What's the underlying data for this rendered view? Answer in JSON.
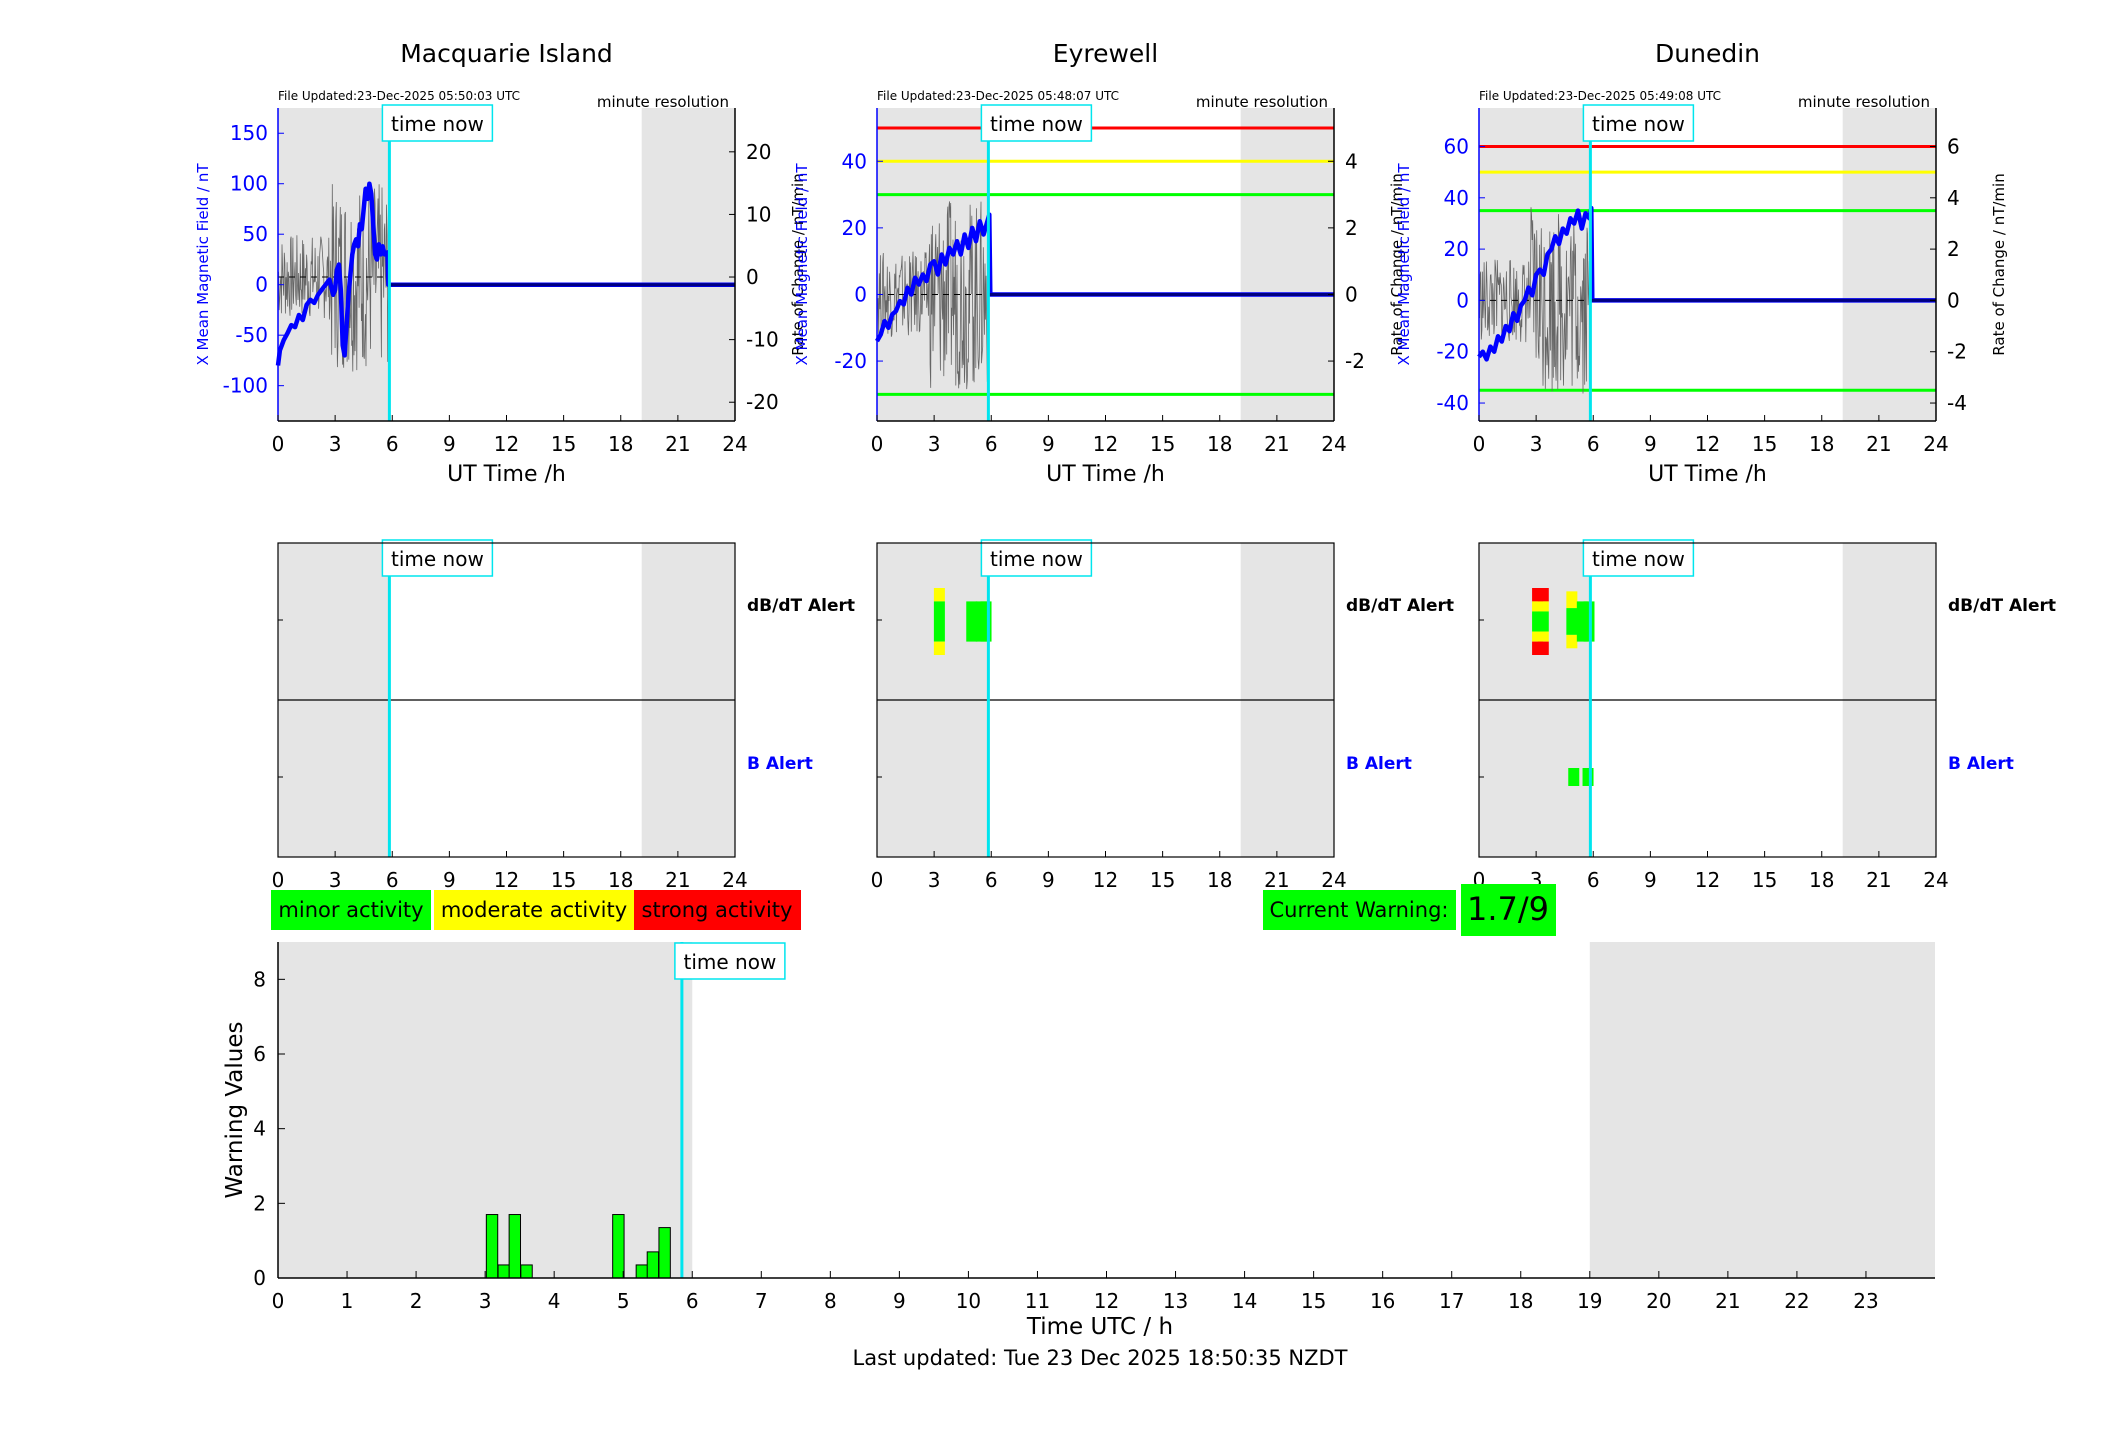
{
  "stations": [
    {
      "name": "Macquarie Island",
      "file_updated": "File Updated:23-Dec-2025 05:50:03 UTC",
      "resolution": "minute resolution",
      "ylim": [
        -135,
        175
      ],
      "yticks": [
        -100,
        -50,
        0,
        50,
        100,
        150
      ],
      "rlim": [
        -23,
        27
      ],
      "rticks": [
        -20,
        -10,
        0,
        10,
        20
      ],
      "thresholds": [],
      "field_trace": [
        [
          0,
          -80
        ],
        [
          0.1,
          -65
        ],
        [
          0.2,
          -60
        ],
        [
          0.3,
          -55
        ],
        [
          0.5,
          -48
        ],
        [
          0.7,
          -40
        ],
        [
          0.9,
          -42
        ],
        [
          1.1,
          -30
        ],
        [
          1.3,
          -35
        ],
        [
          1.5,
          -20
        ],
        [
          1.7,
          -15
        ],
        [
          1.9,
          -18
        ],
        [
          2.1,
          -10
        ],
        [
          2.3,
          -5
        ],
        [
          2.5,
          0
        ],
        [
          2.7,
          5
        ],
        [
          2.9,
          -10
        ],
        [
          3.0,
          -5
        ],
        [
          3.1,
          15
        ],
        [
          3.2,
          20
        ],
        [
          3.3,
          -5
        ],
        [
          3.4,
          -60
        ],
        [
          3.5,
          -70
        ],
        [
          3.6,
          -40
        ],
        [
          3.7,
          -10
        ],
        [
          3.8,
          10
        ],
        [
          3.9,
          30
        ],
        [
          4.0,
          40
        ],
        [
          4.1,
          45
        ],
        [
          4.2,
          38
        ],
        [
          4.3,
          60
        ],
        [
          4.4,
          55
        ],
        [
          4.5,
          75
        ],
        [
          4.6,
          95
        ],
        [
          4.7,
          85
        ],
        [
          4.8,
          100
        ],
        [
          4.9,
          90
        ],
        [
          5.0,
          60
        ],
        [
          5.1,
          30
        ],
        [
          5.2,
          25
        ],
        [
          5.3,
          40
        ],
        [
          5.4,
          30
        ],
        [
          5.5,
          38
        ],
        [
          5.6,
          30
        ],
        [
          5.75,
          32
        ],
        [
          5.8,
          0
        ],
        [
          24,
          0
        ]
      ],
      "dbdt_alerts": [],
      "b_alerts": []
    },
    {
      "name": "Eyrewell",
      "file_updated": "File Updated:23-Dec-2025 05:48:07 UTC",
      "resolution": "minute resolution",
      "ylim": [
        -38,
        56
      ],
      "yticks": [
        -20,
        0,
        20,
        40
      ],
      "rlim": [
        -3.8,
        5.6
      ],
      "rticks": [
        -2,
        0,
        2,
        4
      ],
      "thresholds": [
        {
          "value": 50,
          "color": "#ff0000"
        },
        {
          "value": 40,
          "color": "#ffff00"
        },
        {
          "value": 30,
          "color": "#00ff00"
        },
        {
          "value": -30,
          "color": "#00ff00"
        }
      ],
      "field_trace": [
        [
          0,
          -14
        ],
        [
          0.2,
          -12
        ],
        [
          0.4,
          -8
        ],
        [
          0.6,
          -10
        ],
        [
          0.8,
          -6
        ],
        [
          1.0,
          -5
        ],
        [
          1.2,
          -2
        ],
        [
          1.4,
          -3
        ],
        [
          1.6,
          2
        ],
        [
          1.8,
          0
        ],
        [
          2.0,
          5
        ],
        [
          2.2,
          3
        ],
        [
          2.4,
          6
        ],
        [
          2.6,
          4
        ],
        [
          2.8,
          9
        ],
        [
          3.0,
          10
        ],
        [
          3.2,
          6
        ],
        [
          3.4,
          12
        ],
        [
          3.6,
          9
        ],
        [
          3.8,
          14
        ],
        [
          4.0,
          12
        ],
        [
          4.2,
          16
        ],
        [
          4.4,
          12
        ],
        [
          4.6,
          18
        ],
        [
          4.8,
          14
        ],
        [
          5.0,
          20
        ],
        [
          5.2,
          16
        ],
        [
          5.4,
          22
        ],
        [
          5.6,
          18
        ],
        [
          5.8,
          22
        ],
        [
          5.9,
          24
        ],
        [
          5.95,
          0
        ],
        [
          24,
          0
        ]
      ],
      "dbdt_alerts": [
        {
          "t": 3.25,
          "segs": [
            [
              "yellow",
              0,
              0.2
            ],
            [
              "green",
              0.2,
              0.8
            ],
            [
              "yellow",
              0.8,
              1.0
            ]
          ]
        },
        {
          "t": 4.95,
          "segs": [
            [
              "green",
              0.2,
              0.8
            ]
          ]
        },
        {
          "t": 5.45,
          "segs": [
            [
              "green",
              0.2,
              0.8
            ]
          ]
        },
        {
          "t": 5.7,
          "segs": [
            [
              "green",
              0.2,
              0.8
            ]
          ]
        }
      ],
      "b_alerts": []
    },
    {
      "name": "Dunedin",
      "file_updated": "File Updated:23-Dec-2025 05:49:08 UTC",
      "resolution": "minute resolution",
      "ylim": [
        -47,
        75
      ],
      "yticks": [
        -40,
        -20,
        0,
        20,
        40,
        60
      ],
      "rlim": [
        -4.7,
        7.5
      ],
      "rticks": [
        -4,
        -2,
        0,
        2,
        4,
        6
      ],
      "thresholds": [
        {
          "value": 60,
          "color": "#ff0000"
        },
        {
          "value": 50,
          "color": "#ffff00"
        },
        {
          "value": 35,
          "color": "#00ff00"
        },
        {
          "value": -35,
          "color": "#00ff00"
        }
      ],
      "field_trace": [
        [
          0,
          -22
        ],
        [
          0.2,
          -20
        ],
        [
          0.4,
          -23
        ],
        [
          0.6,
          -18
        ],
        [
          0.8,
          -20
        ],
        [
          1.0,
          -14
        ],
        [
          1.2,
          -16
        ],
        [
          1.4,
          -10
        ],
        [
          1.6,
          -12
        ],
        [
          1.8,
          -5
        ],
        [
          2.0,
          -8
        ],
        [
          2.2,
          -2
        ],
        [
          2.4,
          0
        ],
        [
          2.6,
          5
        ],
        [
          2.8,
          2
        ],
        [
          3.0,
          10
        ],
        [
          3.2,
          12
        ],
        [
          3.4,
          10
        ],
        [
          3.6,
          18
        ],
        [
          3.8,
          20
        ],
        [
          4.0,
          25
        ],
        [
          4.2,
          22
        ],
        [
          4.4,
          28
        ],
        [
          4.6,
          26
        ],
        [
          4.8,
          32
        ],
        [
          5.0,
          30
        ],
        [
          5.2,
          35
        ],
        [
          5.4,
          28
        ],
        [
          5.6,
          34
        ],
        [
          5.8,
          32
        ],
        [
          5.9,
          36
        ],
        [
          5.95,
          0
        ],
        [
          24,
          0
        ]
      ],
      "dbdt_alerts": [
        {
          "t": 3.05,
          "segs": [
            [
              "red",
              0,
              0.2
            ],
            [
              "yellow",
              0.2,
              0.35
            ],
            [
              "green",
              0.35,
              0.65
            ],
            [
              "yellow",
              0.65,
              0.8
            ],
            [
              "red",
              0.8,
              1.0
            ]
          ]
        },
        {
          "t": 3.35,
          "segs": [
            [
              "red",
              0,
              0.2
            ],
            [
              "yellow",
              0.2,
              0.35
            ],
            [
              "green",
              0.35,
              0.65
            ],
            [
              "yellow",
              0.65,
              0.8
            ],
            [
              "red",
              0.8,
              1.0
            ]
          ]
        },
        {
          "t": 4.85,
          "segs": [
            [
              "yellow",
              0.05,
              0.3
            ],
            [
              "green",
              0.3,
              0.7
            ],
            [
              "yellow",
              0.7,
              0.9
            ]
          ]
        },
        {
          "t": 5.4,
          "segs": [
            [
              "green",
              0.2,
              0.8
            ]
          ]
        },
        {
          "t": 5.75,
          "segs": [
            [
              "green",
              0.2,
              0.8
            ]
          ]
        }
      ],
      "b_alerts": [
        {
          "t": 4.95,
          "segs": [
            [
              "green",
              0.25,
              0.75
            ]
          ]
        },
        {
          "t": 5.7,
          "segs": [
            [
              "green",
              0.25,
              0.75
            ]
          ]
        }
      ]
    }
  ],
  "top_xlabel": "UT Time /h",
  "top_xticks": [
    0,
    3,
    6,
    9,
    12,
    15,
    18,
    21,
    24
  ],
  "y_left_label": "X Mean Magnetic Field / nT",
  "y_right_label": "Rate of Change / nT/min",
  "time_now_label": "time now",
  "time_now_hour": 5.85,
  "night_ranges_top": [
    [
      0,
      5.85
    ],
    [
      19.1,
      24
    ]
  ],
  "alert_labels": {
    "dbdt": "dB/dT Alert",
    "b": "B Alert"
  },
  "legend": {
    "minor": "minor activity",
    "moderate": "moderate activity",
    "strong": "strong activity"
  },
  "current_warning": {
    "label": "Current Warning:",
    "value": "1.7/9"
  },
  "chart_data": {
    "type": "bar",
    "xlabel": "Time UTC / h",
    "ylabel": "Warning Values",
    "xlim": [
      0,
      24
    ],
    "ylim": [
      0,
      9
    ],
    "xticks": [
      0,
      1,
      2,
      3,
      4,
      5,
      6,
      7,
      8,
      9,
      10,
      11,
      12,
      13,
      14,
      15,
      16,
      17,
      18,
      19,
      20,
      21,
      22,
      23
    ],
    "yticks": [
      0,
      2,
      4,
      6,
      8
    ],
    "night_ranges": [
      [
        0,
        6.0
      ],
      [
        19.0,
        24
      ]
    ],
    "bars": [
      {
        "t": 3.1,
        "value": 1.7
      },
      {
        "t": 3.27,
        "value": 0.35
      },
      {
        "t": 3.43,
        "value": 1.7
      },
      {
        "t": 3.6,
        "value": 0.35
      },
      {
        "t": 4.93,
        "value": 1.7
      },
      {
        "t": 5.27,
        "value": 0.35
      },
      {
        "t": 5.43,
        "value": 0.7
      },
      {
        "t": 5.6,
        "value": 1.35
      }
    ]
  },
  "last_updated": "Last updated: Tue 23 Dec 2025 18:50:35 NZDT"
}
